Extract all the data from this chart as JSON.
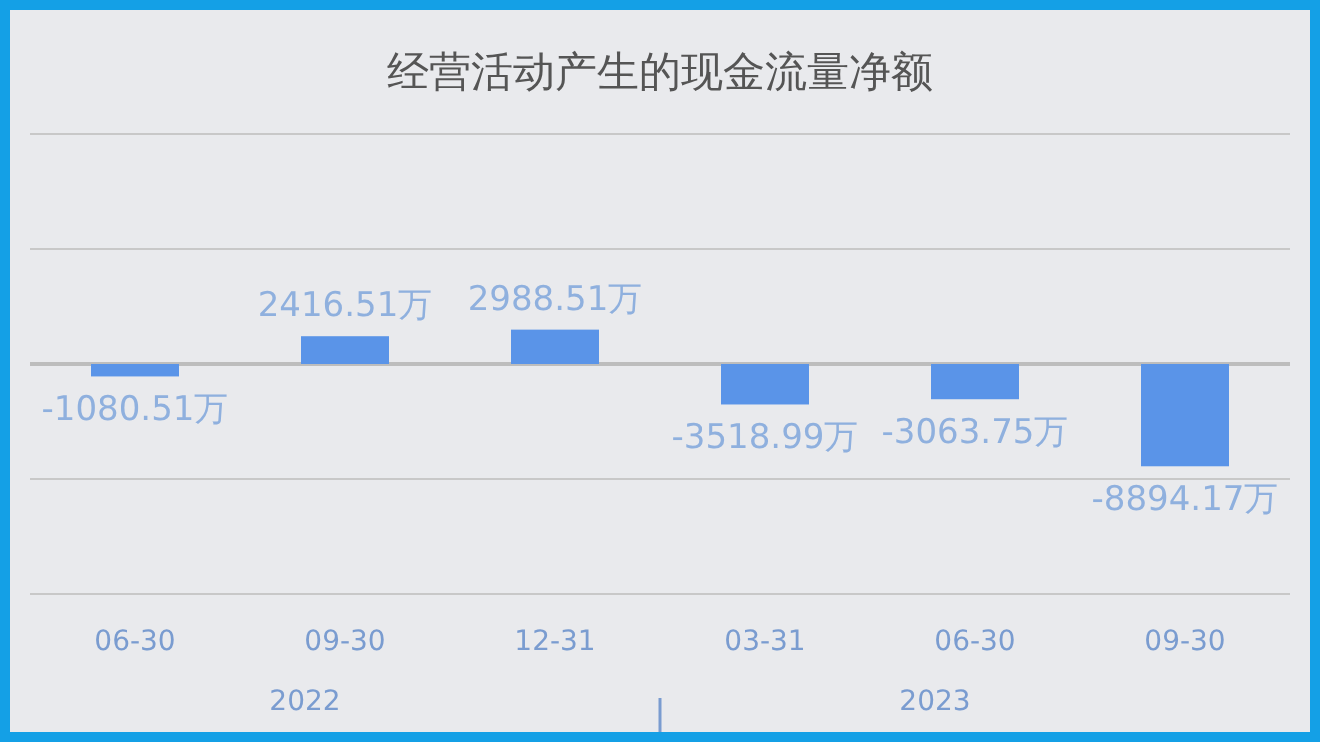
{
  "chart_data": {
    "type": "bar",
    "title": "经营活动产生的现金流量净额",
    "categories": [
      "06-30",
      "09-30",
      "12-31",
      "03-31",
      "06-30",
      "09-30"
    ],
    "values": [
      -1080.51,
      2416.51,
      2988.51,
      -3518.99,
      -3063.75,
      -8894.17
    ],
    "value_labels": [
      "-1080.51万",
      "2416.51万",
      "2988.51万",
      "-3518.99万",
      "-3063.75万",
      "-8894.17万"
    ],
    "color": "#5a94e8",
    "ylim": [
      -20000,
      20000
    ],
    "yticks": [
      {
        "value": -20000,
        "label": null
      },
      {
        "value": -10000,
        "label": null
      },
      {
        "value": 0,
        "label": null
      },
      {
        "value": 10000,
        "label": null
      },
      {
        "value": 20000,
        "label": null
      }
    ],
    "tick_labels": "x",
    "grid": "y",
    "annotations": [
      "2022",
      "2023"
    ]
  }
}
